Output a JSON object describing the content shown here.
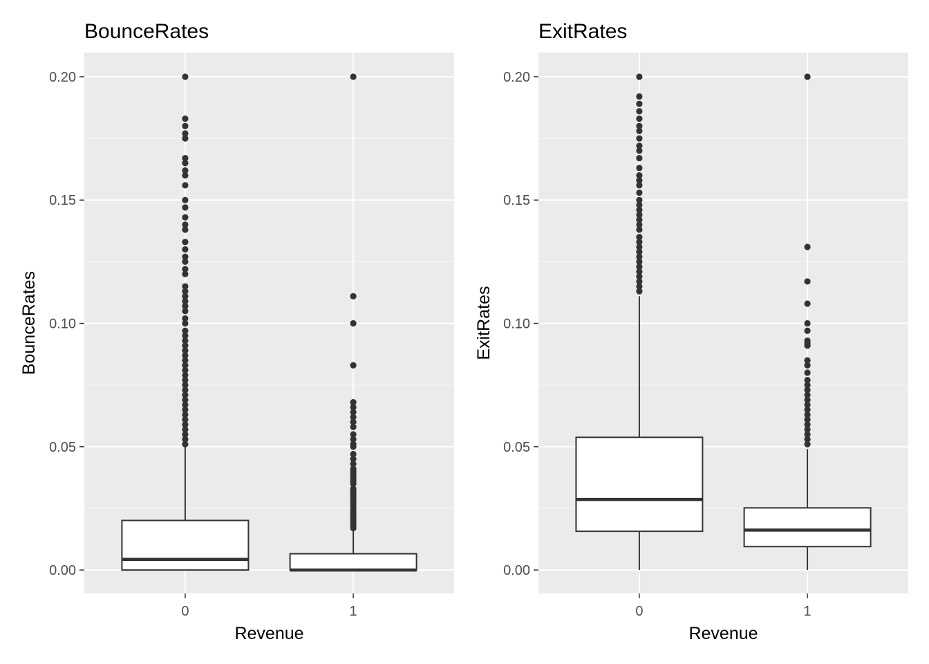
{
  "chart_data": [
    {
      "type": "boxplot",
      "title": "BounceRates",
      "xlabel": "Revenue",
      "ylabel": "BounceRates",
      "categories": [
        "0",
        "1"
      ],
      "ylim": [
        -0.0095,
        0.2098
      ],
      "yticks": [
        0.0,
        0.05,
        0.1,
        0.15,
        0.2
      ],
      "ytick_labels": [
        "0.00",
        "0.05",
        "0.10",
        "0.15",
        "0.20"
      ],
      "grid": true,
      "boxes": [
        {
          "category": "0",
          "q1": 0.0,
          "median": 0.0043,
          "q3": 0.0201,
          "whisker_low": 0.0,
          "whisker_high": 0.05,
          "outliers": [
            0.2,
            0.183,
            0.18,
            0.177,
            0.175,
            0.167,
            0.165,
            0.162,
            0.16,
            0.156,
            0.15,
            0.147,
            0.143,
            0.14,
            0.138,
            0.133,
            0.13,
            0.127,
            0.125,
            0.122,
            0.12,
            0.115,
            0.113,
            0.111,
            0.109,
            0.107,
            0.105,
            0.102,
            0.1,
            0.097,
            0.095,
            0.093,
            0.091,
            0.089,
            0.087,
            0.085,
            0.083,
            0.081,
            0.079,
            0.077,
            0.075,
            0.073,
            0.071,
            0.069,
            0.067,
            0.065,
            0.063,
            0.061,
            0.059,
            0.057,
            0.055,
            0.053,
            0.051
          ]
        },
        {
          "category": "1",
          "q1": 0.0,
          "median": 0.0,
          "q3": 0.0066,
          "whisker_low": 0.0,
          "whisker_high": 0.016,
          "outliers": [
            0.2,
            0.111,
            0.1,
            0.083,
            0.068,
            0.066,
            0.064,
            0.062,
            0.06,
            0.058,
            0.055,
            0.053,
            0.051,
            0.05,
            0.047,
            0.045,
            0.043,
            0.041,
            0.04,
            0.039,
            0.038,
            0.037,
            0.036,
            0.035,
            0.033,
            0.032,
            0.031,
            0.03,
            0.029,
            0.028,
            0.027,
            0.026,
            0.025,
            0.024,
            0.023,
            0.022,
            0.021,
            0.02,
            0.019,
            0.018,
            0.017
          ]
        }
      ]
    },
    {
      "type": "boxplot",
      "title": "ExitRates",
      "xlabel": "Revenue",
      "ylabel": "ExitRates",
      "categories": [
        "0",
        "1"
      ],
      "ylim": [
        -0.0095,
        0.2098
      ],
      "yticks": [
        0.0,
        0.05,
        0.1,
        0.15,
        0.2
      ],
      "ytick_labels": [
        "0.00",
        "0.05",
        "0.10",
        "0.15",
        "0.20"
      ],
      "grid": true,
      "boxes": [
        {
          "category": "0",
          "q1": 0.0157,
          "median": 0.0286,
          "q3": 0.0538,
          "whisker_low": 0.0,
          "whisker_high": 0.111,
          "outliers": [
            0.2,
            0.192,
            0.189,
            0.186,
            0.183,
            0.18,
            0.178,
            0.175,
            0.172,
            0.17,
            0.167,
            0.163,
            0.16,
            0.158,
            0.156,
            0.153,
            0.15,
            0.148,
            0.146,
            0.144,
            0.142,
            0.14,
            0.138,
            0.135,
            0.133,
            0.131,
            0.129,
            0.127,
            0.125,
            0.123,
            0.121,
            0.119,
            0.117,
            0.115,
            0.113
          ]
        },
        {
          "category": "1",
          "q1": 0.0095,
          "median": 0.0162,
          "q3": 0.0252,
          "whisker_low": 0.0,
          "whisker_high": 0.049,
          "outliers": [
            0.2,
            0.131,
            0.117,
            0.108,
            0.1,
            0.097,
            0.093,
            0.092,
            0.091,
            0.085,
            0.083,
            0.08,
            0.077,
            0.075,
            0.073,
            0.071,
            0.069,
            0.067,
            0.065,
            0.063,
            0.061,
            0.059,
            0.057,
            0.055,
            0.053,
            0.051
          ]
        }
      ]
    }
  ]
}
